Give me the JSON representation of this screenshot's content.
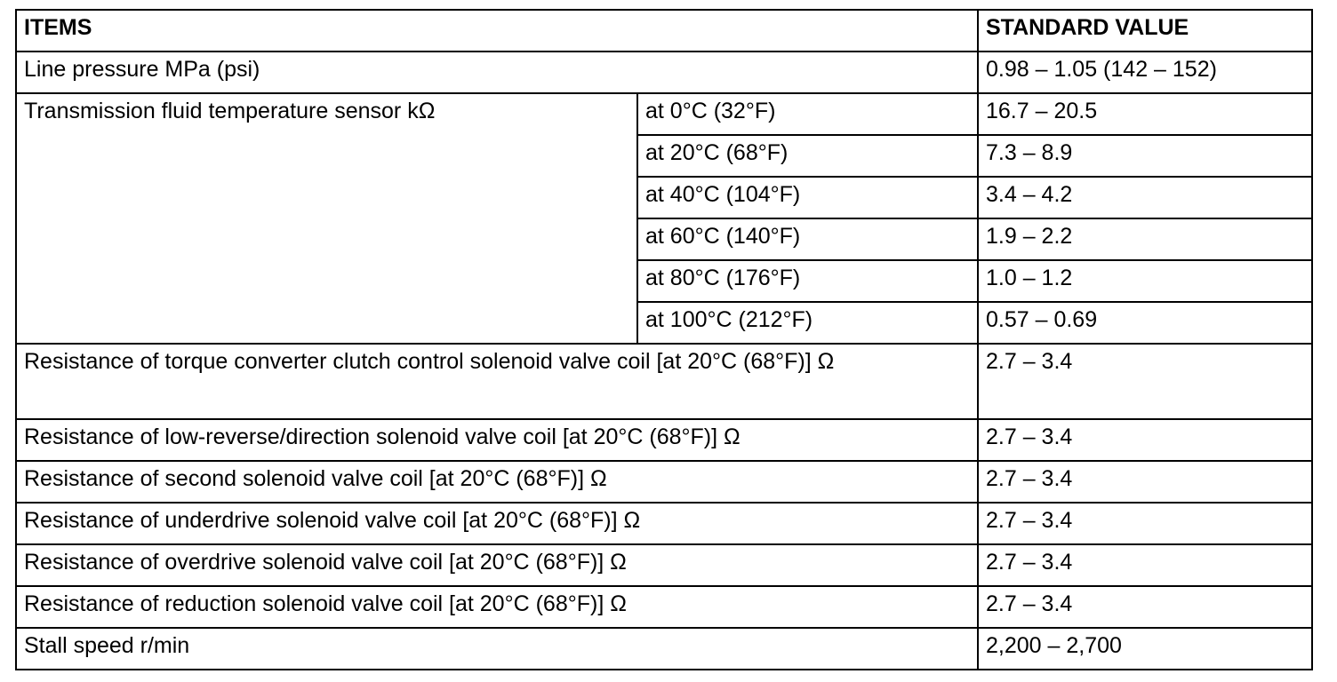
{
  "table": {
    "header": [
      "ITEMS",
      "STANDARD VALUE"
    ],
    "rows": [
      {
        "item": "Line pressure MPa (psi)",
        "value": "0.98 – 1.05 (142 – 152)"
      },
      {
        "item": "Transmission fluid temperature sensor kΩ",
        "conditions": [
          {
            "condition": "at 0°C (32°F)",
            "value": "16.7 – 20.5"
          },
          {
            "condition": "at 20°C (68°F)",
            "value": "7.3 – 8.9"
          },
          {
            "condition": "at 40°C (104°F)",
            "value": "3.4 – 4.2"
          },
          {
            "condition": "at 60°C (140°F)",
            "value": "1.9 – 2.2"
          },
          {
            "condition": "at 80°C (176°F)",
            "value": "1.0 – 1.2"
          },
          {
            "condition": "at 100°C (212°F)",
            "value": "0.57 – 0.69"
          }
        ]
      },
      {
        "item": "Resistance of torque converter clutch control solenoid valve coil [at 20°C (68°F)] Ω",
        "value": "2.7 – 3.4"
      },
      {
        "item": "Resistance of low-reverse/direction solenoid valve coil [at 20°C (68°F)] Ω",
        "value": "2.7 – 3.4"
      },
      {
        "item": "Resistance of second solenoid valve coil [at 20°C (68°F)] Ω",
        "value": "2.7 – 3.4"
      },
      {
        "item": "Resistance of underdrive solenoid valve coil [at 20°C (68°F)] Ω",
        "value": "2.7 – 3.4"
      },
      {
        "item": "Resistance of overdrive solenoid valve coil [at 20°C (68°F)] Ω",
        "value": "2.7 – 3.4"
      },
      {
        "item": "Resistance of reduction solenoid valve coil [at 20°C (68°F)] Ω",
        "value": "2.7 – 3.4"
      },
      {
        "item": "Stall speed r/min",
        "value": "2,200 – 2,700"
      }
    ]
  }
}
